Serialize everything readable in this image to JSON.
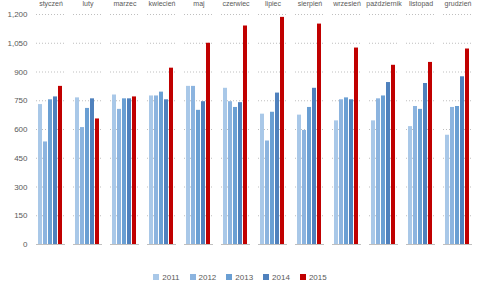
{
  "chart_data": {
    "type": "bar",
    "categories": [
      "styczeń",
      "luty",
      "marzec",
      "kwiecień",
      "maj",
      "czerwiec",
      "lipiec",
      "sierpień",
      "wrzesień",
      "październik",
      "listopad",
      "grudzień"
    ],
    "series": [
      {
        "name": "2011",
        "color": "#a9c8e8",
        "values": [
          730,
          765,
          780,
          775,
          825,
          815,
          680,
          675,
          645,
          645,
          615,
          570
        ]
      },
      {
        "name": "2012",
        "color": "#8cb4df",
        "values": [
          535,
          610,
          705,
          775,
          825,
          745,
          540,
          595,
          755,
          760,
          720,
          715
        ]
      },
      {
        "name": "2013",
        "color": "#6a9fd3",
        "values": [
          755,
          710,
          760,
          795,
          700,
          715,
          690,
          715,
          765,
          775,
          705,
          720
        ]
      },
      {
        "name": "2014",
        "color": "#4f81bd",
        "values": [
          770,
          760,
          760,
          755,
          745,
          740,
          790,
          815,
          755,
          845,
          840,
          875
        ]
      },
      {
        "name": "2015",
        "color": "#c00000",
        "values": [
          825,
          655,
          770,
          920,
          1050,
          1140,
          1185,
          1150,
          1025,
          935,
          950,
          1020
        ]
      }
    ],
    "ylim": [
      0,
      1200
    ],
    "yticks": [
      0,
      150,
      300,
      450,
      600,
      750,
      900,
      1050,
      1200
    ],
    "grid": true,
    "legend": "bottom"
  }
}
